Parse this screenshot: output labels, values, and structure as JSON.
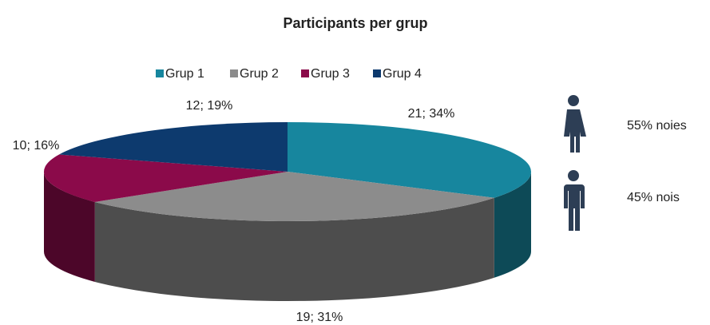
{
  "chart_data": {
    "type": "pie",
    "title": "Participants per grup",
    "categories": [
      "Grup 1",
      "Grup 2",
      "Grup 3",
      "Grup 4"
    ],
    "values": [
      21,
      19,
      10,
      12
    ],
    "value_labels": [
      "21; 34%",
      "19; 31%",
      "10; 16%",
      "12; 19%"
    ],
    "colors": [
      "#17869e",
      "#8c8c8c",
      "#8b0a4a",
      "#0d3a6e"
    ],
    "legend": "top",
    "annotations": [
      {
        "text": "55% noies"
      },
      {
        "text": "45% nois"
      }
    ]
  }
}
